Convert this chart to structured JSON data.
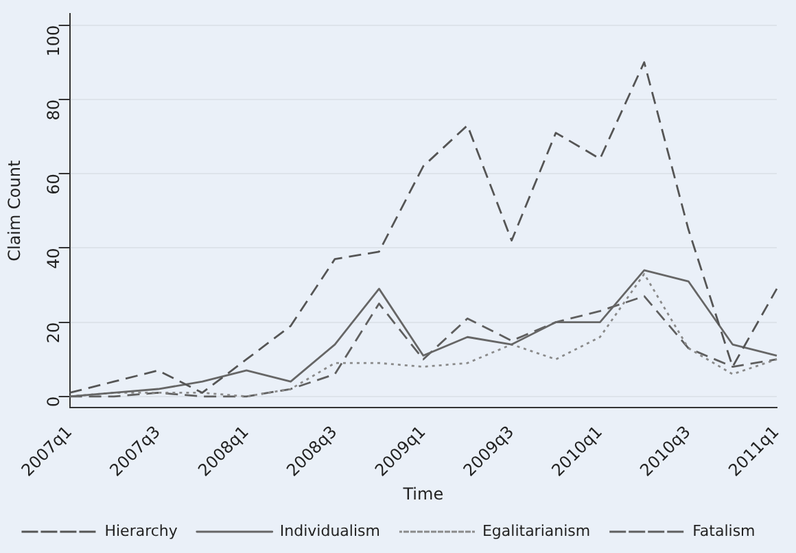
{
  "chart_data": {
    "type": "line",
    "xlabel": "Time",
    "ylabel": "Claim Count",
    "categories": [
      "2007q1",
      null,
      "2007q3",
      null,
      "2008q1",
      null,
      "2008q3",
      null,
      "2009q1",
      null,
      "2009q3",
      null,
      "2010q1",
      null,
      "2010q3",
      null,
      "2011q1"
    ],
    "ylim": [
      -3,
      103
    ],
    "yticks": [
      0,
      20,
      40,
      60,
      80,
      100
    ],
    "grid": "y",
    "legend": "bottom",
    "marker": "none",
    "series": [
      {
        "name": "Hierarchy",
        "color": "#555555",
        "line_style": "dashed",
        "values": [
          1,
          4,
          7,
          1,
          10,
          19,
          37,
          39,
          62,
          73,
          42,
          71,
          64,
          90,
          45,
          8,
          29
        ]
      },
      {
        "name": "Individualism",
        "color": "#666666",
        "line_style": "solid",
        "values": [
          0,
          1,
          2,
          4,
          7,
          4,
          14,
          29,
          11,
          16,
          14,
          20,
          20,
          34,
          31,
          14,
          11
        ]
      },
      {
        "name": "Egalitarianism",
        "color": "#8a8a8a",
        "line_style": "dotted",
        "values": [
          0,
          1,
          1,
          1,
          0,
          2,
          9,
          9,
          8,
          9,
          14,
          10,
          16,
          33,
          13,
          6,
          10
        ]
      },
      {
        "name": "Fatalism",
        "color": "#5f5f5f",
        "line_style": "dashed",
        "values": [
          0,
          0,
          1,
          0,
          0,
          2,
          6,
          25,
          10,
          21,
          15,
          20,
          23,
          27,
          13,
          8,
          10
        ]
      }
    ]
  }
}
